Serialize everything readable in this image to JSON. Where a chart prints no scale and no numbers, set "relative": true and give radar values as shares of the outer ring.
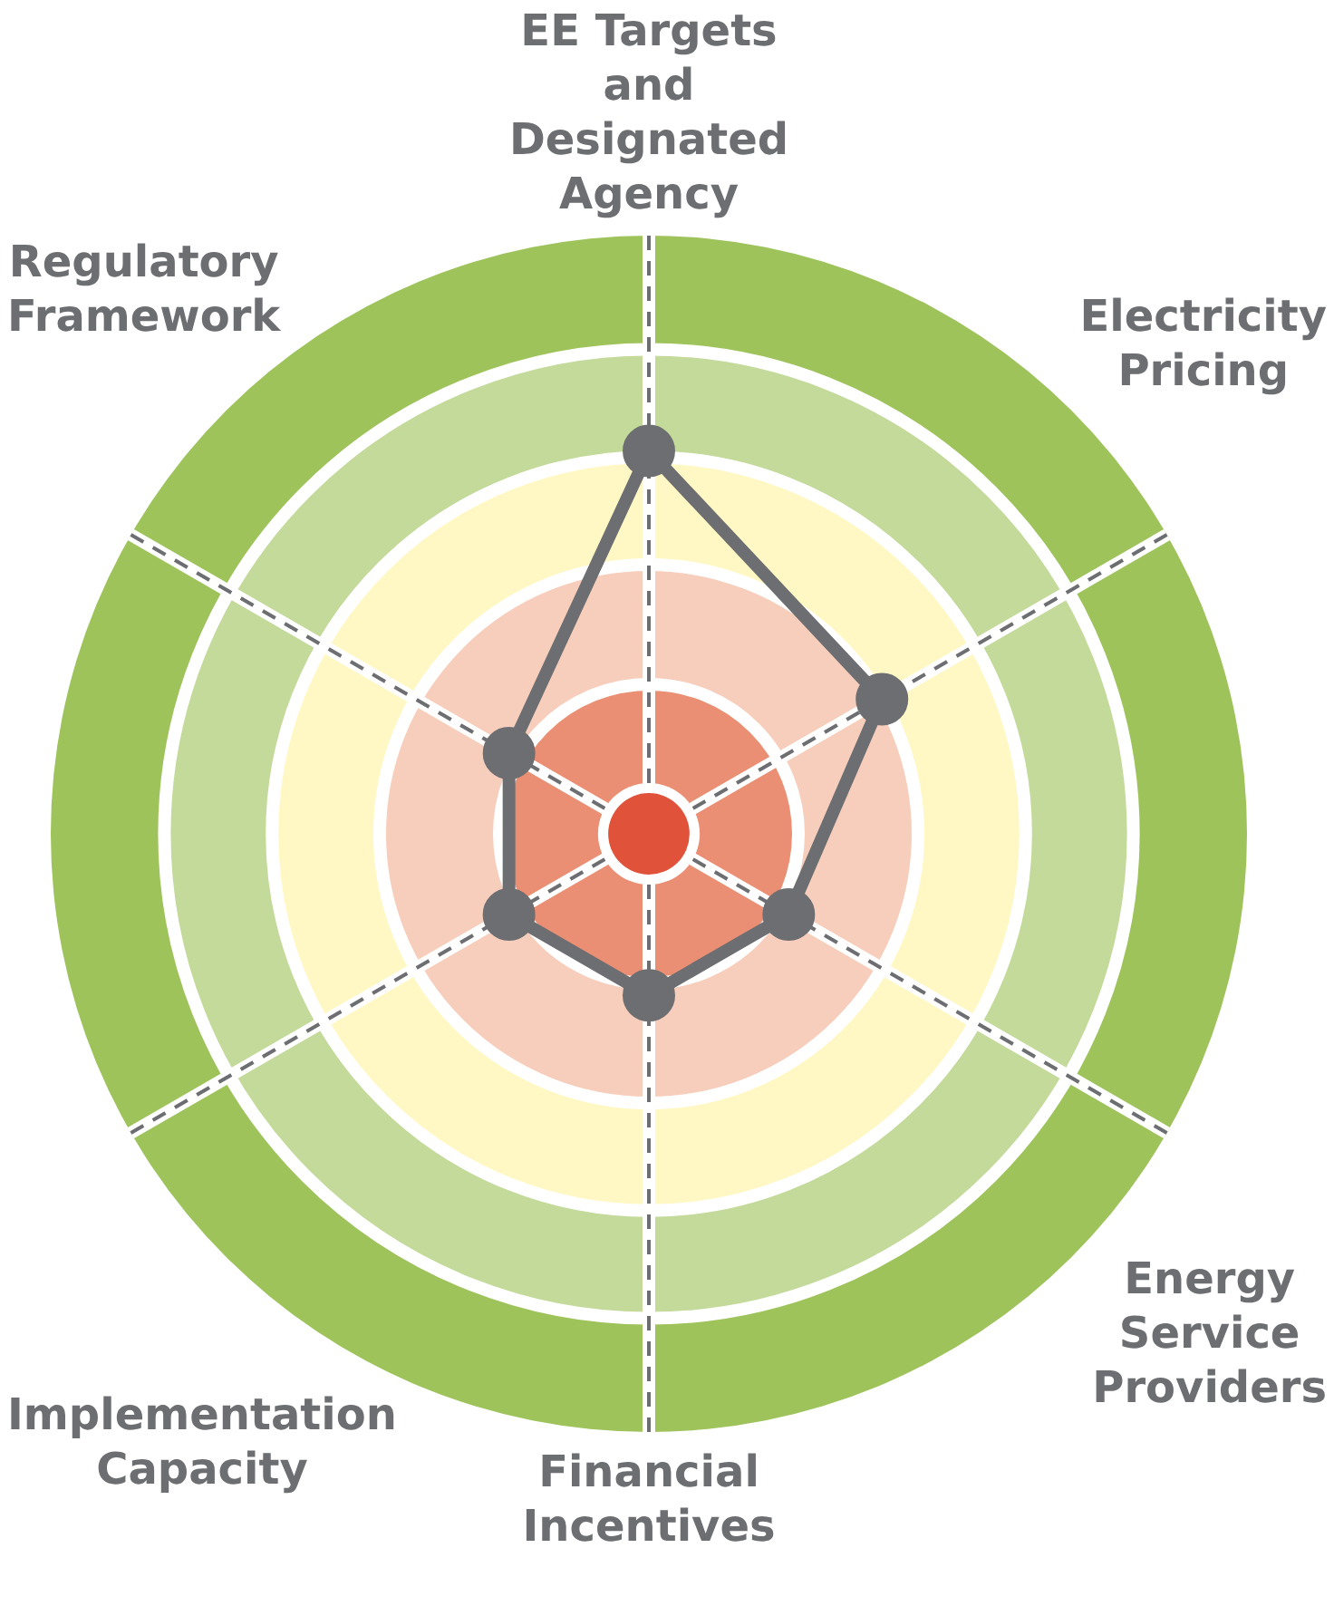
{
  "chart_data": {
    "type": "radar",
    "relative": true,
    "marker": "circle",
    "categories": [
      "EE Targets and Designated Agency",
      "Electricity Pricing",
      "Energy Service Providers",
      "Financial Incentives",
      "Implementation Capacity",
      "Regulatory Framework"
    ],
    "series": [
      {
        "color": "#6d6e71",
        "values": [
          0.64,
          0.45,
          0.27,
          0.27,
          0.27,
          0.27
        ]
      }
    ]
  }
}
